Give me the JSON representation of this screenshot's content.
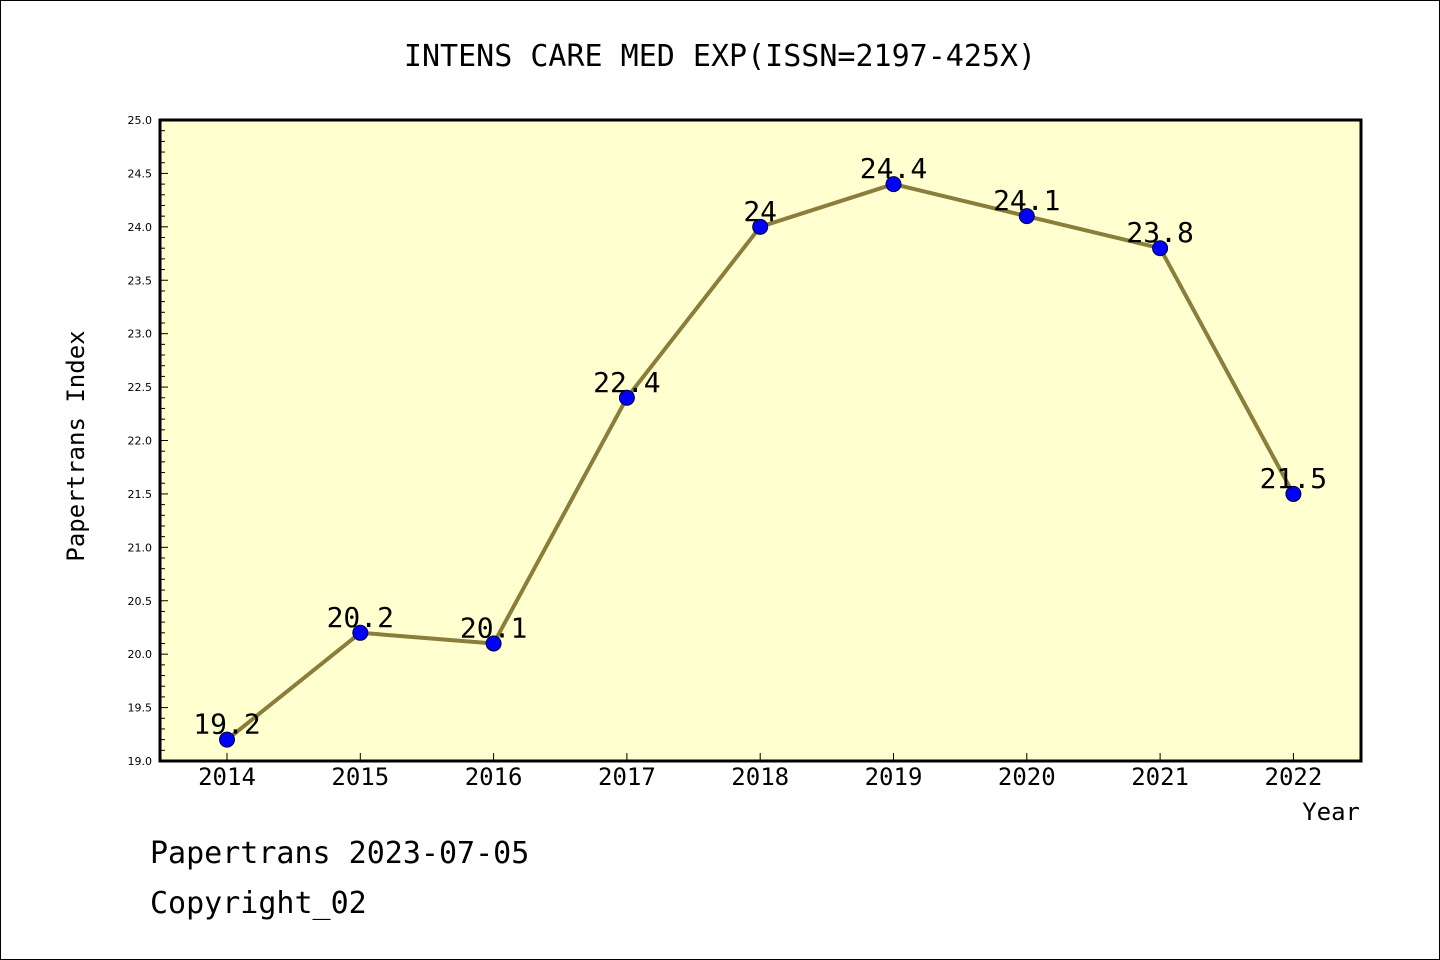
{
  "chart_data": {
    "type": "line",
    "title": "INTENS CARE MED EXP(ISSN=2197-425X)",
    "xlabel": "Year",
    "ylabel": "Papertrans Index",
    "categories": [
      "2014",
      "2015",
      "2016",
      "2017",
      "2018",
      "2019",
      "2020",
      "2021",
      "2022"
    ],
    "values": [
      19.2,
      20.2,
      20.1,
      22.4,
      24,
      24.4,
      24.1,
      23.8,
      21.5
    ],
    "data_labels": [
      "19.2",
      "20.2",
      "20.1",
      "22.4",
      "24",
      "24.4",
      "24.1",
      "23.8",
      "21.5"
    ],
    "ylim": [
      19.0,
      25.0
    ],
    "y_ticks": [
      "19.0",
      "19.5",
      "20.0",
      "20.5",
      "21.0",
      "21.5",
      "22.0",
      "22.5",
      "23.0",
      "23.5",
      "24.0",
      "24.5",
      "25.0"
    ],
    "grid": false,
    "colors": {
      "plot_background": "#ffffd0",
      "line": "#8b7d3a",
      "marker": "#0000ff"
    }
  },
  "footer": {
    "line1": "Papertrans 2023-07-05",
    "line2": "Copyright_02"
  }
}
